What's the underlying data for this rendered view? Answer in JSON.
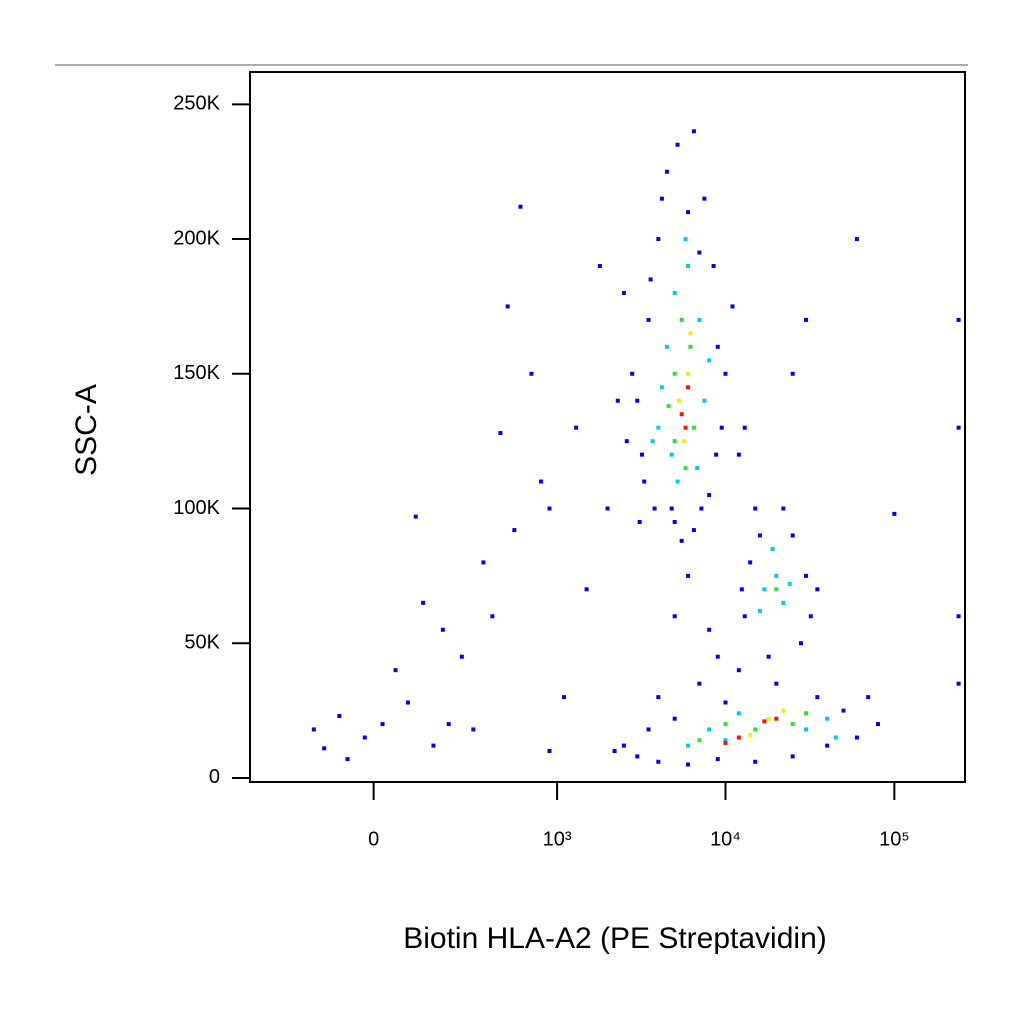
{
  "chart_data": {
    "type": "scatter",
    "xlabel": "Biotin HLA-A2 (PE Streptavidin)",
    "ylabel": "SSC-A",
    "xscale": "biexponential",
    "xlim": [
      -430,
      262000
    ],
    "xticks": [
      0,
      {
        "value": 1000,
        "label": "10³"
      },
      {
        "value": 10000,
        "label": "10⁴"
      },
      {
        "value": 100000,
        "label": "10⁵"
      }
    ],
    "ylim": [
      -1500,
      262000
    ],
    "yticks": [
      0,
      {
        "value": 50000,
        "label": "50K"
      },
      {
        "value": 100000,
        "label": "100K"
      },
      {
        "value": 150000,
        "label": "150K"
      },
      {
        "value": 200000,
        "label": "200K"
      },
      {
        "value": 250000,
        "label": "250K"
      }
    ],
    "series": [
      {
        "color": "#0000ff",
        "x": [
          3200,
          3500,
          3000,
          4000,
          4500,
          5200,
          6500,
          7500,
          8500,
          9000,
          9500,
          8000,
          6500,
          5000,
          3800,
          3300,
          2800,
          3600,
          6000,
          7000,
          4200,
          8800,
          2600,
          10000,
          11000,
          4800,
          7200,
          5500,
          3100,
          2500,
          12000,
          13000,
          2300,
          6000,
          8000,
          9000,
          5000,
          12000,
          7000,
          4000,
          14000,
          16000,
          25000,
          30000,
          32000,
          28000,
          18000,
          13000,
          15000,
          22000,
          35000,
          12500,
          2500,
          3000,
          4000,
          6000,
          9000,
          15000,
          25000,
          40000,
          60000,
          80000,
          50000,
          35000,
          20000,
          10000,
          5000,
          3500,
          2200,
          70000,
          -150,
          -120,
          -80,
          -20,
          20,
          50,
          80,
          100,
          120,
          150,
          180,
          250,
          300,
          350,
          400,
          450,
          500,
          550,
          600,
          700,
          800,
          900,
          1100,
          1500,
          1800,
          1300,
          2000,
          900,
          -60,
          200,
          60000,
          100000,
          30000,
          25000,
          240000,
          240000,
          240000,
          240000
        ],
        "values": [
          120000,
          170000,
          140000,
          200000,
          225000,
          235000,
          240000,
          215000,
          190000,
          160000,
          130000,
          105000,
          92000,
          95000,
          100000,
          110000,
          150000,
          185000,
          210000,
          195000,
          215000,
          120000,
          125000,
          150000,
          175000,
          100000,
          100000,
          88000,
          95000,
          180000,
          120000,
          130000,
          140000,
          75000,
          55000,
          45000,
          60000,
          40000,
          35000,
          30000,
          80000,
          90000,
          90000,
          75000,
          60000,
          50000,
          45000,
          60000,
          100000,
          100000,
          70000,
          70000,
          12000,
          8000,
          6000,
          5000,
          7000,
          6000,
          8000,
          12000,
          15000,
          20000,
          25000,
          30000,
          35000,
          28000,
          22000,
          18000,
          10000,
          30000,
          18000,
          11000,
          23000,
          15000,
          20000,
          40000,
          28000,
          97000,
          65000,
          12000,
          55000,
          45000,
          18000,
          80000,
          60000,
          128000,
          175000,
          92000,
          212000,
          150000,
          110000,
          100000,
          30000,
          70000,
          190000,
          130000,
          100000,
          10000,
          7000,
          20000,
          200000,
          98000,
          170000,
          150000,
          170000,
          130000,
          60000,
          35000
        ]
      },
      {
        "color": "#00c8ff",
        "x": [
          4000,
          4500,
          5000,
          6000,
          7000,
          7500,
          6800,
          5200,
          4200,
          3700,
          5800,
          8000,
          4800,
          17000,
          20000,
          22000,
          19000,
          24000,
          16000,
          6000,
          10000,
          30000,
          40000,
          12000,
          8000,
          45000
        ],
        "values": [
          130000,
          160000,
          180000,
          190000,
          170000,
          140000,
          115000,
          110000,
          145000,
          125000,
          200000,
          155000,
          120000,
          70000,
          75000,
          65000,
          85000,
          72000,
          62000,
          12000,
          14000,
          18000,
          22000,
          24000,
          18000,
          15000
        ]
      },
      {
        "color": "#30e030",
        "x": [
          5000,
          5500,
          6200,
          6500,
          5000,
          4600,
          5800,
          20000,
          15000,
          25000,
          10000,
          30000,
          7000
        ],
        "values": [
          150000,
          170000,
          160000,
          130000,
          125000,
          138000,
          115000,
          70000,
          18000,
          20000,
          20000,
          24000,
          14000
        ]
      },
      {
        "color": "#f0f000",
        "x": [
          5300,
          6000,
          5700,
          6200,
          18000,
          14000,
          22000
        ],
        "values": [
          140000,
          150000,
          125000,
          165000,
          22000,
          16000,
          25000
        ]
      },
      {
        "color": "#ff1000",
        "x": [
          5500,
          6000,
          5800,
          17000,
          20000,
          12000,
          10000
        ],
        "values": [
          135000,
          145000,
          130000,
          21000,
          22000,
          15000,
          13000
        ]
      }
    ]
  }
}
